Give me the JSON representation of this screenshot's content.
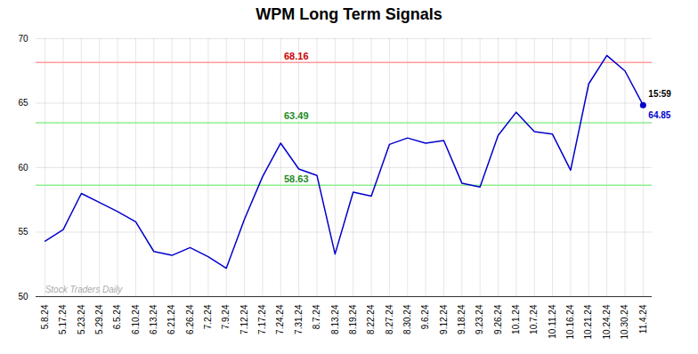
{
  "chart_data": {
    "type": "line",
    "title": "WPM Long Term Signals",
    "categories": [
      "5.8.24",
      "5.17.24",
      "5.23.24",
      "5.29.24",
      "6.5.24",
      "6.10.24",
      "6.13.24",
      "6.21.24",
      "6.26.24",
      "7.2.24",
      "7.9.24",
      "7.12.24",
      "7.17.24",
      "7.24.24",
      "7.31.24",
      "8.7.24",
      "8.13.24",
      "8.19.24",
      "8.22.24",
      "8.27.24",
      "8.30.24",
      "9.6.24",
      "9.12.24",
      "9.18.24",
      "9.23.24",
      "9.26.24",
      "10.1.24",
      "10.7.24",
      "10.11.24",
      "10.16.24",
      "10.21.24",
      "10.24.24",
      "10.30.24",
      "11.4.24"
    ],
    "values": [
      54.3,
      55.2,
      58.0,
      57.3,
      56.6,
      55.8,
      53.5,
      53.2,
      53.8,
      53.1,
      52.2,
      56.0,
      59.3,
      61.9,
      59.9,
      59.4,
      53.3,
      58.1,
      57.8,
      61.8,
      62.3,
      61.9,
      62.1,
      58.8,
      58.5,
      62.5,
      64.3,
      62.8,
      62.6,
      59.8,
      66.5,
      68.7,
      67.5,
      64.85
    ],
    "color": "#0000CC",
    "ylim": [
      50,
      70
    ],
    "yticks": [
      50,
      55,
      60,
      65,
      70
    ],
    "grid": true,
    "reference_lines": [
      {
        "value": 68.16,
        "label": "68.16",
        "color": "#FF9999",
        "label_color": "#CC0000"
      },
      {
        "value": 63.49,
        "label": "63.49",
        "color": "#90EE90",
        "label_color": "#228B22"
      },
      {
        "value": 58.63,
        "label": "58.63",
        "color": "#90EE90",
        "label_color": "#228B22"
      }
    ],
    "last_point": {
      "time_label": "15:59",
      "time_color": "#000000",
      "value_label": "64.85",
      "color": "#0000CC"
    },
    "watermark": "Stock Traders Daily",
    "watermark_color": "#AAAAAA"
  }
}
